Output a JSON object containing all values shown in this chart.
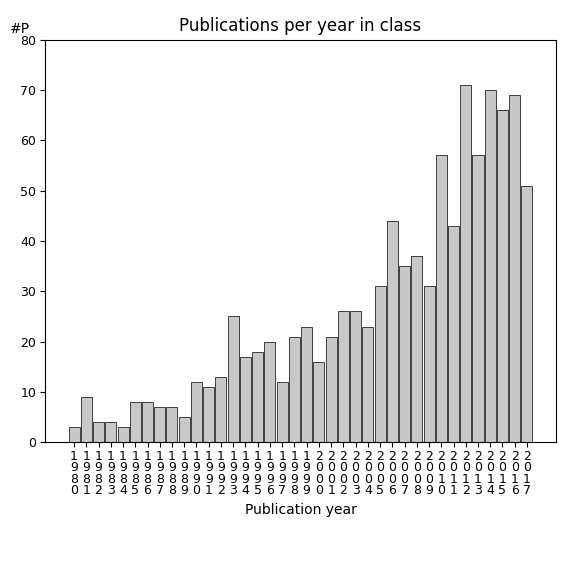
{
  "years": [
    1980,
    1981,
    1982,
    1983,
    1984,
    1985,
    1986,
    1987,
    1988,
    1989,
    1990,
    1991,
    1992,
    1993,
    1994,
    1995,
    1996,
    1997,
    1998,
    1999,
    2000,
    2001,
    2002,
    2003,
    2004,
    2005,
    2006,
    2007,
    2008,
    2009,
    2010,
    2011,
    2012,
    2013,
    2014,
    2015,
    2016,
    2017
  ],
  "values": [
    3,
    9,
    4,
    4,
    3,
    8,
    8,
    7,
    7,
    5,
    12,
    11,
    13,
    25,
    17,
    18,
    20,
    12,
    21,
    23,
    16,
    21,
    26,
    26,
    23,
    31,
    44,
    35,
    37,
    31,
    57,
    43,
    71,
    57,
    70,
    66,
    69,
    51
  ],
  "bar_color": "#c8c8c8",
  "bar_edgecolor": "#000000",
  "title": "Publications per year in class",
  "xlabel": "Publication year",
  "ylabel": "#P",
  "ylim": [
    0,
    80
  ],
  "yticks": [
    0,
    10,
    20,
    30,
    40,
    50,
    60,
    70,
    80
  ],
  "title_fontsize": 12,
  "label_fontsize": 10,
  "tick_fontsize": 9,
  "bg_color": "#ffffff"
}
